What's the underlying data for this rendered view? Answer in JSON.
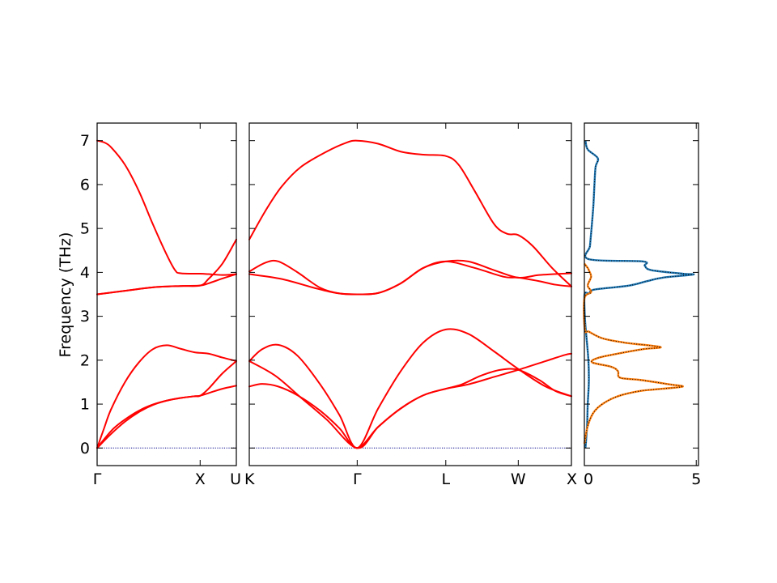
{
  "chart_data": {
    "type": "line",
    "title": "",
    "ylabel": "Frequency (THz)",
    "ylim": [
      -0.4,
      7.4
    ],
    "yticks": [
      0,
      1,
      2,
      3,
      4,
      5,
      6,
      7
    ],
    "band_color": "#ff0000",
    "zero_line_color": "#00008b",
    "dos_total_color": "#1f77b4",
    "dos_partial_color": "#ff7f0e",
    "panels": [
      {
        "id": "gamma-x-u",
        "xlabels": [
          {
            "label": "Γ",
            "x": 0
          },
          {
            "label": "X",
            "x": 0.74
          },
          {
            "label": "U",
            "x": 1
          }
        ],
        "bands": [
          [
            [
              0,
              0
            ],
            [
              0.05,
              0.2
            ],
            [
              0.12,
              0.45
            ],
            [
              0.2,
              0.65
            ],
            [
              0.3,
              0.85
            ],
            [
              0.4,
              0.99
            ],
            [
              0.5,
              1.08
            ],
            [
              0.6,
              1.14
            ],
            [
              0.7,
              1.18
            ],
            [
              0.74,
              1.19
            ],
            [
              0.8,
              1.25
            ],
            [
              0.9,
              1.35
            ],
            [
              1,
              1.42
            ]
          ],
          [
            [
              0,
              0
            ],
            [
              0.1,
              0.32
            ],
            [
              0.2,
              0.6
            ],
            [
              0.3,
              0.82
            ],
            [
              0.4,
              0.98
            ],
            [
              0.5,
              1.08
            ],
            [
              0.6,
              1.14
            ],
            [
              0.7,
              1.18
            ],
            [
              0.74,
              1.19
            ],
            [
              0.8,
              1.35
            ],
            [
              0.9,
              1.7
            ],
            [
              1,
              1.98
            ]
          ],
          [
            [
              0,
              0
            ],
            [
              0.05,
              0.45
            ],
            [
              0.1,
              0.88
            ],
            [
              0.2,
              1.5
            ],
            [
              0.3,
              1.95
            ],
            [
              0.4,
              2.25
            ],
            [
              0.5,
              2.34
            ],
            [
              0.6,
              2.26
            ],
            [
              0.7,
              2.18
            ],
            [
              0.8,
              2.15
            ],
            [
              0.9,
              2.06
            ],
            [
              1,
              1.98
            ]
          ],
          [
            [
              0,
              3.5
            ],
            [
              0.2,
              3.58
            ],
            [
              0.4,
              3.66
            ],
            [
              0.6,
              3.69
            ],
            [
              0.74,
              3.7
            ],
            [
              0.8,
              3.75
            ],
            [
              0.9,
              3.86
            ],
            [
              1,
              3.96
            ]
          ],
          [
            [
              0,
              3.5
            ],
            [
              0.2,
              3.58
            ],
            [
              0.4,
              3.66
            ],
            [
              0.6,
              3.69
            ],
            [
              0.74,
              3.7
            ],
            [
              0.8,
              3.85
            ],
            [
              0.9,
              4.2
            ],
            [
              1,
              4.75
            ]
          ],
          [
            [
              0,
              7
            ],
            [
              0.05,
              6.96
            ],
            [
              0.1,
              6.85
            ],
            [
              0.2,
              6.45
            ],
            [
              0.3,
              5.85
            ],
            [
              0.4,
              5.1
            ],
            [
              0.5,
              4.4
            ],
            [
              0.56,
              4.05
            ],
            [
              0.6,
              3.98
            ],
            [
              0.74,
              3.97
            ],
            [
              0.8,
              3.96
            ],
            [
              0.9,
              3.94
            ],
            [
              1,
              3.96
            ]
          ]
        ]
      },
      {
        "id": "k-gamma-l-w-x",
        "xlabels": [
          {
            "label": "K",
            "x": 0
          },
          {
            "label": "Γ",
            "x": 0.335
          },
          {
            "label": "L",
            "x": 0.61
          },
          {
            "label": "W",
            "x": 0.835
          },
          {
            "label": "X",
            "x": 1
          }
        ],
        "bands": [
          [
            [
              0,
              1.4
            ],
            [
              0.04,
              1.46
            ],
            [
              0.09,
              1.4
            ],
            [
              0.15,
              1.2
            ],
            [
              0.22,
              0.85
            ],
            [
              0.28,
              0.45
            ],
            [
              0.335,
              0
            ],
            [
              0.4,
              0.48
            ],
            [
              0.47,
              0.9
            ],
            [
              0.54,
              1.2
            ],
            [
              0.61,
              1.35
            ],
            [
              0.68,
              1.45
            ],
            [
              0.76,
              1.62
            ],
            [
              0.835,
              1.78
            ],
            [
              0.92,
              1.98
            ],
            [
              0.98,
              2.12
            ],
            [
              1,
              2.15
            ]
          ],
          [
            [
              0,
              1.98
            ],
            [
              0.08,
              1.65
            ],
            [
              0.16,
              1.15
            ],
            [
              0.24,
              0.65
            ],
            [
              0.335,
              0
            ],
            [
              0.4,
              0.48
            ],
            [
              0.47,
              0.9
            ],
            [
              0.54,
              1.2
            ],
            [
              0.61,
              1.35
            ],
            [
              0.66,
              1.45
            ],
            [
              0.72,
              1.65
            ],
            [
              0.78,
              1.78
            ],
            [
              0.835,
              1.78
            ],
            [
              0.9,
              1.55
            ],
            [
              0.95,
              1.3
            ],
            [
              1,
              1.18
            ]
          ],
          [
            [
              0,
              1.98
            ],
            [
              0.04,
              2.25
            ],
            [
              0.09,
              2.35
            ],
            [
              0.15,
              2.1
            ],
            [
              0.22,
              1.45
            ],
            [
              0.28,
              0.75
            ],
            [
              0.335,
              0
            ],
            [
              0.4,
              0.9
            ],
            [
              0.47,
              1.75
            ],
            [
              0.54,
              2.4
            ],
            [
              0.61,
              2.7
            ],
            [
              0.68,
              2.6
            ],
            [
              0.76,
              2.2
            ],
            [
              0.835,
              1.8
            ],
            [
              0.92,
              1.4
            ],
            [
              1,
              1.18
            ]
          ],
          [
            [
              0,
              3.96
            ],
            [
              0.1,
              3.85
            ],
            [
              0.2,
              3.65
            ],
            [
              0.27,
              3.53
            ],
            [
              0.335,
              3.5
            ],
            [
              0.4,
              3.53
            ],
            [
              0.47,
              3.75
            ],
            [
              0.54,
              4.1
            ],
            [
              0.61,
              4.25
            ],
            [
              0.7,
              4.1
            ],
            [
              0.79,
              3.9
            ],
            [
              0.835,
              3.88
            ],
            [
              0.9,
              3.8
            ],
            [
              0.95,
              3.72
            ],
            [
              1,
              3.68
            ]
          ],
          [
            [
              0,
              4.02
            ],
            [
              0.05,
              4.22
            ],
            [
              0.09,
              4.25
            ],
            [
              0.15,
              4.0
            ],
            [
              0.22,
              3.65
            ],
            [
              0.28,
              3.52
            ],
            [
              0.335,
              3.5
            ],
            [
              0.4,
              3.53
            ],
            [
              0.47,
              3.75
            ],
            [
              0.54,
              4.1
            ],
            [
              0.61,
              4.25
            ],
            [
              0.68,
              4.25
            ],
            [
              0.76,
              4.05
            ],
            [
              0.835,
              3.88
            ],
            [
              0.9,
              3.94
            ],
            [
              1,
              3.98
            ]
          ],
          [
            [
              0,
              4.75
            ],
            [
              0.05,
              5.4
            ],
            [
              0.1,
              5.95
            ],
            [
              0.16,
              6.4
            ],
            [
              0.24,
              6.75
            ],
            [
              0.3,
              6.95
            ],
            [
              0.335,
              7
            ],
            [
              0.4,
              6.93
            ],
            [
              0.47,
              6.75
            ],
            [
              0.54,
              6.68
            ],
            [
              0.61,
              6.65
            ],
            [
              0.65,
              6.45
            ],
            [
              0.7,
              5.85
            ],
            [
              0.76,
              5.1
            ],
            [
              0.8,
              4.88
            ],
            [
              0.835,
              4.85
            ],
            [
              0.88,
              4.6
            ],
            [
              0.94,
              4.1
            ],
            [
              1,
              3.68
            ]
          ]
        ]
      }
    ],
    "dos": {
      "xlim": [
        0,
        5.1
      ],
      "xticks": [
        0,
        5
      ],
      "series": [
        {
          "points": [
            [
              0.05,
              0
            ],
            [
              0.12,
              0.5
            ],
            [
              0.15,
              1.0
            ],
            [
              0.2,
              1.5
            ],
            [
              0.18,
              2.0
            ],
            [
              0.08,
              2.6
            ],
            [
              0.02,
              3.0
            ],
            [
              0.01,
              3.5
            ],
            [
              0.2,
              3.52
            ],
            [
              0.3,
              3.58
            ],
            [
              0.6,
              3.62
            ],
            [
              2.0,
              3.7
            ],
            [
              2.8,
              3.8
            ],
            [
              3.5,
              3.88
            ],
            [
              4.85,
              3.95
            ],
            [
              4.4,
              3.97
            ],
            [
              3.0,
              4.05
            ],
            [
              2.7,
              4.15
            ],
            [
              2.6,
              4.25
            ],
            [
              0.2,
              4.3
            ],
            [
              0.25,
              4.6
            ],
            [
              0.32,
              5.0
            ],
            [
              0.4,
              5.5
            ],
            [
              0.45,
              6.0
            ],
            [
              0.5,
              6.4
            ],
            [
              0.6,
              6.6
            ],
            [
              0.15,
              6.8
            ],
            [
              0.05,
              7.0
            ]
          ]
        },
        {
          "points": [
            [
              0,
              0.1
            ],
            [
              0.15,
              0.5
            ],
            [
              0.4,
              0.8
            ],
            [
              0.8,
              1.0
            ],
            [
              1.5,
              1.18
            ],
            [
              2.5,
              1.3
            ],
            [
              3.5,
              1.35
            ],
            [
              4.4,
              1.4
            ],
            [
              3.8,
              1.45
            ],
            [
              2.5,
              1.55
            ],
            [
              1.6,
              1.6
            ],
            [
              1.5,
              1.75
            ],
            [
              1.2,
              1.85
            ],
            [
              0.35,
              1.95
            ],
            [
              0.6,
              2.05
            ],
            [
              1.5,
              2.15
            ],
            [
              2.6,
              2.25
            ],
            [
              3.4,
              2.3
            ],
            [
              1.8,
              2.4
            ],
            [
              0.8,
              2.5
            ],
            [
              0.2,
              2.65
            ],
            [
              0.02,
              2.7
            ],
            [
              0,
              3.4
            ],
            [
              0.3,
              3.55
            ],
            [
              0.15,
              3.7
            ],
            [
              0.3,
              3.9
            ],
            [
              0.2,
              4.05
            ],
            [
              0.15,
              4.1
            ],
            [
              0,
              4.2
            ]
          ]
        }
      ]
    }
  }
}
